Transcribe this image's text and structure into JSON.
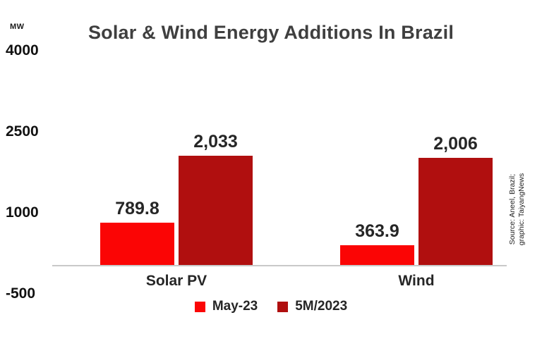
{
  "chart_data": {
    "type": "bar",
    "title": "Solar & Wind Energy Additions In Brazil",
    "unit": "MW",
    "categories": [
      "Solar PV",
      "Wind"
    ],
    "series": [
      {
        "name": "May-23",
        "color": "#fb0505",
        "values": [
          789.8,
          363.9
        ],
        "labels": [
          "789.8",
          "363.9"
        ]
      },
      {
        "name": "5M/2023",
        "color": "#b00f0f",
        "values": [
          2033,
          2006
        ],
        "labels": [
          "2,033",
          "2,006"
        ]
      }
    ],
    "yticks": [
      "4000",
      "2500",
      "1000",
      "-500"
    ],
    "ylim": [
      -500,
      4000
    ],
    "grid": false,
    "legend_position": "bottom"
  },
  "source_note": {
    "line1": "Source: Aneel, Brazil;",
    "line2": "graphic: TaiyangNews"
  }
}
